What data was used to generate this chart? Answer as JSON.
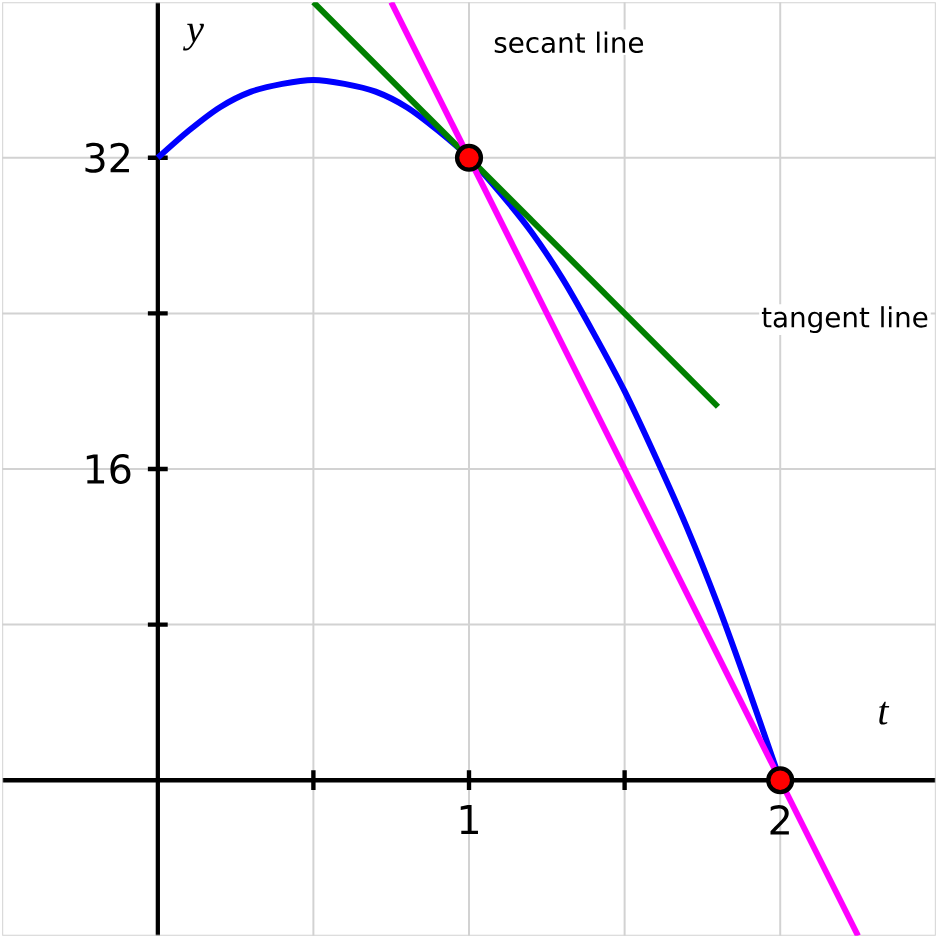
{
  "chart_data": {
    "type": "line",
    "xlabel": "t",
    "ylabel": "y",
    "xlim": [
      -0.5,
      2.5
    ],
    "ylim": [
      -8,
      40
    ],
    "xticks": [
      {
        "value": 0.5,
        "label": null
      },
      1,
      {
        "value": 1.5,
        "label": null
      },
      2
    ],
    "yticks": [
      {
        "value": 8,
        "label": null
      },
      16,
      {
        "value": 24,
        "label": null
      },
      32
    ],
    "grid": true,
    "series": [
      {
        "color": "#0000ff",
        "marker": "none",
        "x": [
          0,
          0.1,
          0.2,
          0.3,
          0.4,
          0.5,
          0.6,
          0.7,
          0.8,
          0.9,
          1,
          1.1,
          1.2,
          1.3,
          1.4,
          1.5,
          1.6,
          1.7,
          1.8,
          1.9,
          2
        ],
        "values": [
          32,
          33.4,
          34.6,
          35.4,
          35.8,
          36,
          35.8,
          35.4,
          34.6,
          33.4,
          32,
          30.2,
          28.2,
          25.8,
          23,
          20,
          16.6,
          13,
          9,
          4.6,
          0
        ]
      },
      {
        "type": "line",
        "color": "#008000",
        "marker": "none",
        "x": [
          0.5,
          1.8
        ],
        "values": [
          40,
          19.2
        ]
      },
      {
        "type": "line",
        "color": "#ff00ff",
        "marker": "none",
        "x": [
          0.75,
          2.25
        ],
        "values": [
          40,
          -8
        ]
      },
      {
        "type": "scatter",
        "color": "#ff0000",
        "marker": "circle",
        "x": [
          1,
          2
        ],
        "values": [
          32,
          0
        ]
      }
    ],
    "annotations": [
      "secant line",
      "tangent line"
    ]
  }
}
